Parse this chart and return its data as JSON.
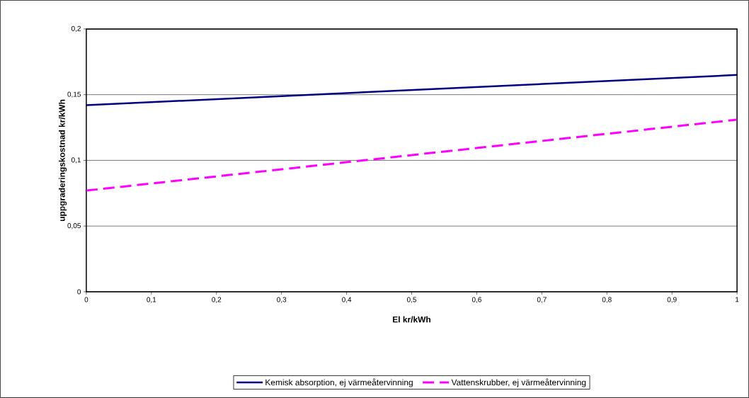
{
  "chart_data": {
    "type": "line",
    "xlabel": "El kr/kWh",
    "ylabel": "uppgraderingskostnad kr/kWh",
    "x": [
      0,
      1
    ],
    "series": [
      {
        "name": "Kemisk absorption, ej värmeåtervinning",
        "color": "#000080",
        "values": [
          0.142,
          0.165
        ],
        "line_style": "solid"
      },
      {
        "name": "Vattenskrubber, ej värmeåtervinning",
        "color": "#ff00ff",
        "values": [
          0.077,
          0.131
        ],
        "line_style": "dashed"
      }
    ],
    "xlim": [
      0,
      1
    ],
    "xticks": [
      0,
      {
        "value": 0.1,
        "label": "0,1"
      },
      {
        "value": 0.2,
        "label": "0,2"
      },
      {
        "value": 0.3,
        "label": "0,3"
      },
      {
        "value": 0.4,
        "label": "0,4"
      },
      {
        "value": 0.5,
        "label": "0,5"
      },
      {
        "value": 0.6,
        "label": "0,6"
      },
      {
        "value": 0.7,
        "label": "0,7"
      },
      {
        "value": 0.8,
        "label": "0,8"
      },
      {
        "value": 0.9,
        "label": "0,9"
      },
      1
    ],
    "ylim": [
      0,
      0.2
    ],
    "yticks": [
      0,
      {
        "value": 0.05,
        "label": "0,05"
      },
      {
        "value": 0.1,
        "label": "0,1"
      },
      {
        "value": 0.15,
        "label": "0,15"
      },
      {
        "value": 0.2,
        "label": "0,2"
      }
    ],
    "grid": "y",
    "legend": "bottom",
    "marker": "none"
  }
}
